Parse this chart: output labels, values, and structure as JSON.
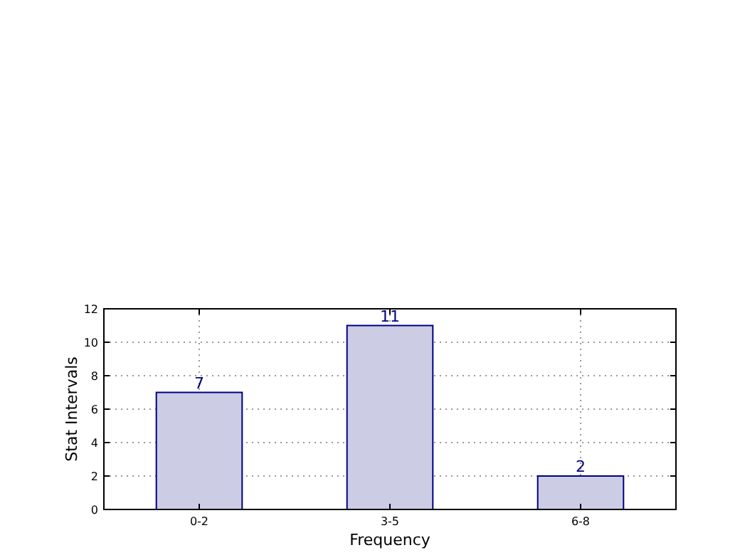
{
  "chart_data": {
    "type": "bar",
    "xlabel": "Frequency",
    "ylabel": "Stat Intervals",
    "categories": [
      "0-2",
      "3-5",
      "6-8"
    ],
    "values": [
      7,
      11,
      2
    ],
    "color": "#cccce5",
    "ylim": [
      0,
      12
    ],
    "yticks": [
      0,
      2,
      4,
      6,
      8,
      10,
      12
    ],
    "grid": true,
    "data_labels": true
  }
}
